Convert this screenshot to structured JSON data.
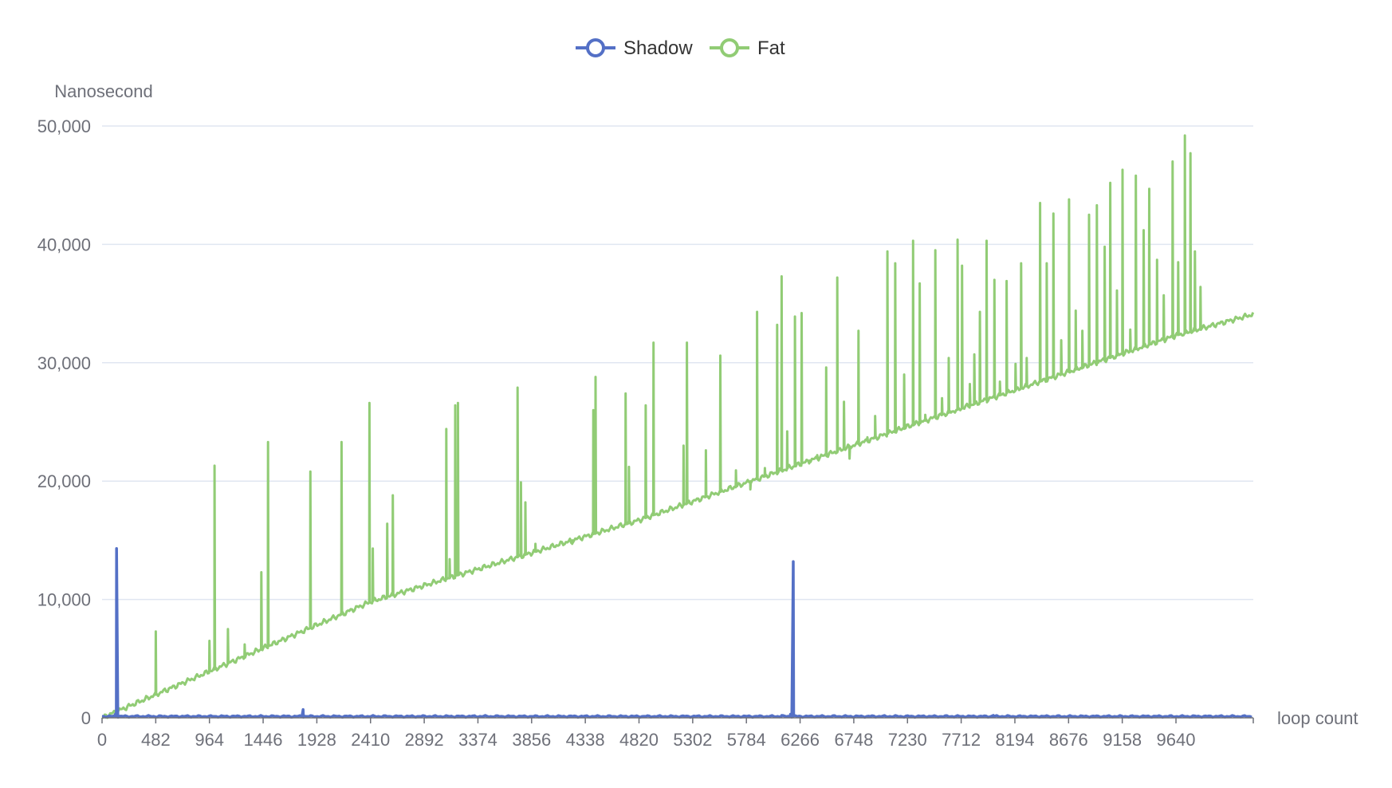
{
  "chart_data": {
    "type": "line",
    "xlabel": "loop count",
    "ylabel": "Nanosecond",
    "xlim": [
      0,
      10334
    ],
    "ylim": [
      0,
      50000
    ],
    "x_ticks": [
      0,
      482,
      964,
      1446,
      1928,
      2410,
      2892,
      3374,
      3856,
      4338,
      4820,
      5302,
      5784,
      6266,
      6748,
      7230,
      7712,
      8194,
      8676,
      9158,
      9640
    ],
    "y_ticks": [
      0,
      10000,
      20000,
      30000,
      40000,
      50000
    ],
    "y_tick_labels": [
      "0",
      "10,000",
      "20,000",
      "30,000",
      "40,000",
      "50,000"
    ],
    "grid": true,
    "legend_position": "top-center",
    "series": [
      {
        "name": "Shadow",
        "color": "#5470c6",
        "baseline": 120,
        "points": [
          [
            0,
            120
          ],
          [
            100,
            150
          ],
          [
            118,
            300
          ],
          [
            130,
            14300
          ],
          [
            142,
            200
          ],
          [
            160,
            120
          ],
          [
            1795,
            150
          ],
          [
            1805,
            700
          ],
          [
            1815,
            150
          ],
          [
            6100,
            200
          ],
          [
            6180,
            300
          ],
          [
            6205,
            13200
          ],
          [
            6215,
            200
          ],
          [
            6260,
            150
          ],
          [
            8000,
            200
          ],
          [
            10334,
            120
          ]
        ]
      },
      {
        "name": "Fat",
        "color": "#91cc75",
        "trend": [
          [
            0,
            0
          ],
          [
            2410,
            9800
          ],
          [
            4820,
            16700
          ],
          [
            7230,
            24600
          ],
          [
            9640,
            32300
          ],
          [
            10334,
            34100
          ]
        ],
        "spikes": [
          [
            482,
            7300
          ],
          [
            964,
            6500
          ],
          [
            1010,
            21300
          ],
          [
            1130,
            7500
          ],
          [
            1280,
            6200
          ],
          [
            1430,
            12300
          ],
          [
            1490,
            23300
          ],
          [
            1870,
            20800
          ],
          [
            2150,
            23300
          ],
          [
            2400,
            26600
          ],
          [
            2430,
            14300
          ],
          [
            2560,
            16400
          ],
          [
            2610,
            18800
          ],
          [
            3090,
            24400
          ],
          [
            3170,
            26400
          ],
          [
            3195,
            26600
          ],
          [
            3120,
            13400
          ],
          [
            3730,
            27900
          ],
          [
            3760,
            19900
          ],
          [
            3800,
            18200
          ],
          [
            3890,
            14700
          ],
          [
            4220,
            14700
          ],
          [
            4210,
            14800
          ],
          [
            4410,
            26000
          ],
          [
            4430,
            28800
          ],
          [
            4700,
            27400
          ],
          [
            4730,
            21200
          ],
          [
            4880,
            26400
          ],
          [
            4950,
            31700
          ],
          [
            5220,
            23000
          ],
          [
            5250,
            31700
          ],
          [
            5420,
            22600
          ],
          [
            5550,
            30600
          ],
          [
            5690,
            20900
          ],
          [
            5820,
            19300
          ],
          [
            5880,
            34300
          ],
          [
            5950,
            21100
          ],
          [
            6060,
            33200
          ],
          [
            6100,
            37300
          ],
          [
            6150,
            24200
          ],
          [
            6220,
            33900
          ],
          [
            6280,
            34200
          ],
          [
            6350,
            21700
          ],
          [
            6420,
            22200
          ],
          [
            6500,
            29600
          ],
          [
            6600,
            37200
          ],
          [
            6660,
            26700
          ],
          [
            6710,
            21900
          ],
          [
            6790,
            32700
          ],
          [
            6870,
            23700
          ],
          [
            6940,
            25500
          ],
          [
            7050,
            39400
          ],
          [
            7120,
            38400
          ],
          [
            7200,
            29000
          ],
          [
            7280,
            40300
          ],
          [
            7340,
            36700
          ],
          [
            7390,
            25600
          ],
          [
            7480,
            39500
          ],
          [
            7540,
            27000
          ],
          [
            7600,
            30400
          ],
          [
            7680,
            40400
          ],
          [
            7720,
            38200
          ],
          [
            7790,
            28200
          ],
          [
            7830,
            30700
          ],
          [
            7880,
            34300
          ],
          [
            7940,
            40300
          ],
          [
            8010,
            37000
          ],
          [
            8060,
            28400
          ],
          [
            8120,
            36900
          ],
          [
            8200,
            29900
          ],
          [
            8250,
            38400
          ],
          [
            8300,
            30400
          ],
          [
            8420,
            43500
          ],
          [
            8480,
            38400
          ],
          [
            8540,
            42600
          ],
          [
            8610,
            31900
          ],
          [
            8680,
            43800
          ],
          [
            8740,
            34400
          ],
          [
            8800,
            32700
          ],
          [
            8860,
            42500
          ],
          [
            8930,
            43300
          ],
          [
            9000,
            39800
          ],
          [
            9050,
            45200
          ],
          [
            9110,
            36100
          ],
          [
            9160,
            46300
          ],
          [
            9230,
            32800
          ],
          [
            9280,
            45800
          ],
          [
            9350,
            41200
          ],
          [
            9400,
            44700
          ],
          [
            9470,
            38700
          ],
          [
            9530,
            35700
          ],
          [
            9610,
            47000
          ],
          [
            9660,
            38500
          ],
          [
            9720,
            49200
          ],
          [
            9770,
            47700
          ],
          [
            9810,
            39400
          ],
          [
            9860,
            36400
          ]
        ]
      }
    ]
  }
}
